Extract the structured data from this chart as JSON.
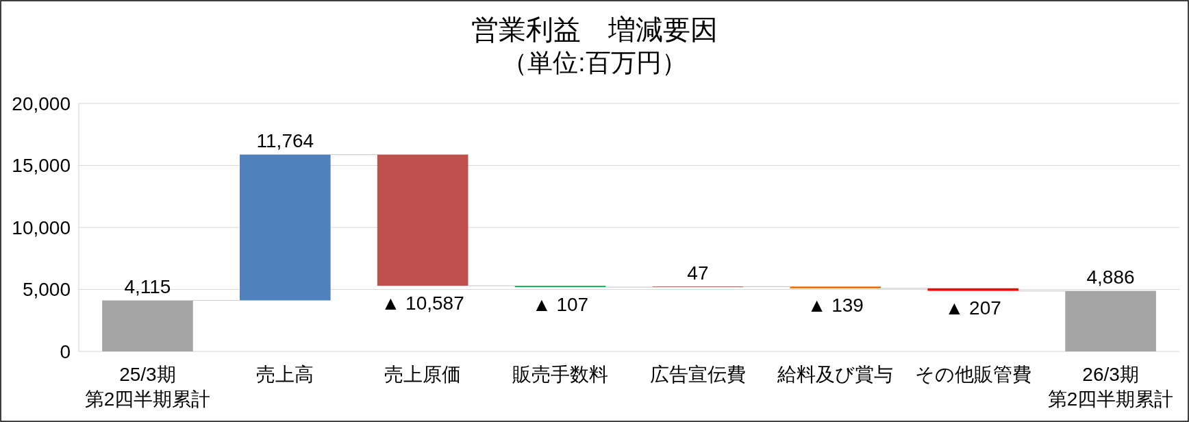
{
  "chart_data": {
    "type": "bar",
    "title": "営業利益　増減要因",
    "subtitle": "（単位:百万円）",
    "categories": [
      "25/3期第2四半期累計",
      "売上高",
      "売上原価",
      "販売手数料",
      "広告宣伝費",
      "給料及び賞与",
      "その他販管費",
      "26/3期第2四半期累計"
    ],
    "values": [
      4115,
      11764,
      -10587,
      -107,
      47,
      -139,
      -207,
      4886
    ],
    "base": [
      0,
      4115,
      15879,
      5292,
      5185,
      5232,
      5093,
      0
    ],
    "colors": [
      "#a5a5a5",
      "#4f81bd",
      "#c0504d",
      "#00b050",
      "#953735",
      "#e46c0a",
      "#ff0000",
      "#a5a5a5"
    ],
    "value_labels": [
      "4,115",
      "11,764",
      "▲ 10,587",
      "▲ 107",
      "47",
      "▲ 139",
      "▲ 207",
      "4,886"
    ],
    "ylim": [
      0,
      20000
    ],
    "yticks": [
      0,
      {
        "value": 5000,
        "label": "5,000"
      },
      {
        "value": 10000,
        "label": "10,000"
      },
      {
        "value": 15000,
        "label": "15,000"
      },
      {
        "value": 20000,
        "label": "20,000"
      }
    ],
    "grid": "y"
  }
}
